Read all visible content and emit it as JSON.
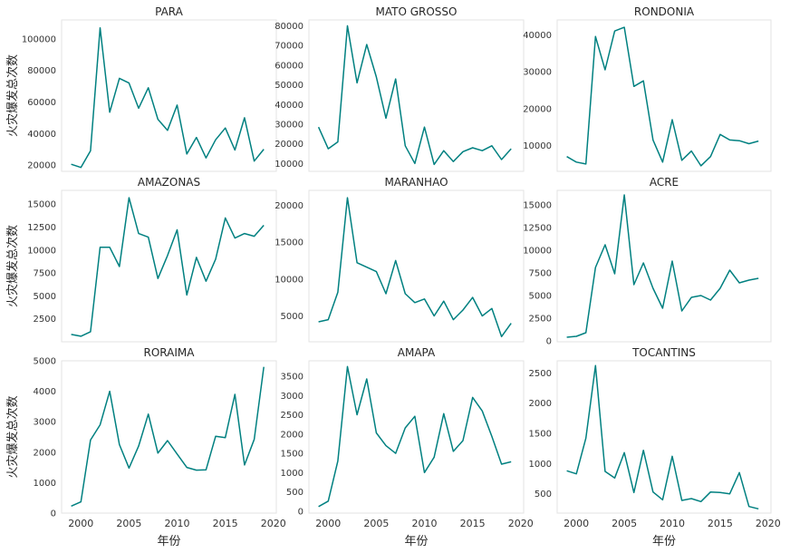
{
  "chart_data": {
    "type": "line",
    "layout": "3x3 small multiples",
    "shared_x": true,
    "x_ticks": [
      2000,
      2005,
      2010,
      2015,
      2020
    ],
    "x_label": "年份",
    "y_label": "火灾爆发总次数",
    "line_color": "#008080",
    "grid": false,
    "legend": "none",
    "panels": [
      {
        "title": "PARA",
        "ylim": [
          16000,
          112000
        ],
        "yticks": [
          20000,
          40000,
          60000,
          80000,
          100000
        ],
        "x": [
          1999,
          2000,
          2001,
          2002,
          2003,
          2004,
          2005,
          2006,
          2007,
          2008,
          2009,
          2010,
          2011,
          2012,
          2013,
          2014,
          2015,
          2016,
          2017,
          2018,
          2019
        ],
        "y": [
          20500,
          18500,
          29000,
          107000,
          53500,
          75000,
          72000,
          56000,
          69000,
          49000,
          42000,
          58000,
          27000,
          37500,
          24500,
          36000,
          43500,
          29500,
          50000,
          22500,
          30000
        ]
      },
      {
        "title": "MATO GROSSO",
        "ylim": [
          6000,
          83000
        ],
        "yticks": [
          10000,
          20000,
          30000,
          40000,
          50000,
          60000,
          70000,
          80000
        ],
        "x": [
          1999,
          2000,
          2001,
          2002,
          2003,
          2004,
          2005,
          2006,
          2007,
          2008,
          2009,
          2010,
          2011,
          2012,
          2013,
          2014,
          2015,
          2016,
          2017,
          2018,
          2019
        ],
        "y": [
          28500,
          17500,
          21000,
          80000,
          51000,
          70500,
          54000,
          33000,
          53000,
          19000,
          10000,
          28500,
          9500,
          16500,
          11000,
          16000,
          18000,
          16500,
          19000,
          12000,
          17500
        ]
      },
      {
        "title": "RONDONIA",
        "ylim": [
          3000,
          44000
        ],
        "yticks": [
          10000,
          20000,
          30000,
          40000
        ],
        "x": [
          1999,
          2000,
          2001,
          2002,
          2003,
          2004,
          2005,
          2006,
          2007,
          2008,
          2009,
          2010,
          2011,
          2012,
          2013,
          2014,
          2015,
          2016,
          2017,
          2018,
          2019
        ],
        "y": [
          7000,
          5500,
          5000,
          39500,
          30500,
          41000,
          42000,
          26000,
          27500,
          11500,
          5500,
          17000,
          6000,
          8500,
          4500,
          7000,
          13000,
          11500,
          11300,
          10500,
          11200
        ]
      },
      {
        "title": "AMAZONAS",
        "ylim": [
          0,
          16500
        ],
        "yticks": [
          2500,
          5000,
          7500,
          10000,
          12500,
          15000
        ],
        "x": [
          1999,
          2000,
          2001,
          2002,
          2003,
          2004,
          2005,
          2006,
          2007,
          2008,
          2009,
          2010,
          2011,
          2012,
          2013,
          2014,
          2015,
          2016,
          2017,
          2018,
          2019
        ],
        "y": [
          800,
          600,
          1100,
          10300,
          10300,
          8200,
          15700,
          11800,
          11400,
          6900,
          9400,
          12200,
          5100,
          9200,
          6600,
          9000,
          13500,
          11300,
          11800,
          11500,
          12700
        ]
      },
      {
        "title": "MARANHAO",
        "ylim": [
          1500,
          22000
        ],
        "yticks": [
          5000,
          10000,
          15000,
          20000
        ],
        "x": [
          1999,
          2000,
          2001,
          2002,
          2003,
          2004,
          2005,
          2006,
          2007,
          2008,
          2009,
          2010,
          2011,
          2012,
          2013,
          2014,
          2015,
          2016,
          2017,
          2018,
          2019
        ],
        "y": [
          4200,
          4500,
          8200,
          21000,
          12200,
          11600,
          11000,
          8000,
          12500,
          8000,
          6800,
          7300,
          5000,
          7000,
          4500,
          5800,
          7500,
          5000,
          6000,
          2200,
          4000
        ]
      },
      {
        "title": "ACRE",
        "ylim": [
          -100,
          16600
        ],
        "yticks": [
          0,
          2500,
          5000,
          7500,
          10000,
          12500,
          15000
        ],
        "x": [
          1999,
          2000,
          2001,
          2002,
          2003,
          2004,
          2005,
          2006,
          2007,
          2008,
          2009,
          2010,
          2011,
          2012,
          2013,
          2014,
          2015,
          2016,
          2017,
          2018,
          2019
        ],
        "y": [
          400,
          500,
          900,
          8100,
          10600,
          7400,
          16100,
          6200,
          8600,
          5800,
          3600,
          8800,
          3300,
          4800,
          5000,
          4500,
          5800,
          7800,
          6400,
          6700,
          6900
        ]
      },
      {
        "title": "RORAIMA",
        "ylim": [
          0,
          5000
        ],
        "yticks": [
          0,
          1000,
          2000,
          3000,
          4000,
          5000
        ],
        "x": [
          1999,
          2000,
          2001,
          2002,
          2003,
          2004,
          2005,
          2006,
          2007,
          2008,
          2009,
          2010,
          2011,
          2012,
          2013,
          2014,
          2015,
          2016,
          2017,
          2018,
          2019
        ],
        "y": [
          230,
          370,
          2400,
          2900,
          4000,
          2250,
          1480,
          2200,
          3250,
          1970,
          2380,
          1940,
          1500,
          1410,
          1420,
          2520,
          2480,
          3900,
          1580,
          2420,
          4800
        ]
      },
      {
        "title": "AMAPA",
        "ylim": [
          -50,
          3900
        ],
        "yticks": [
          0,
          500,
          1000,
          1500,
          2000,
          2500,
          3000,
          3500
        ],
        "x": [
          1999,
          2000,
          2001,
          2002,
          2003,
          2004,
          2005,
          2006,
          2007,
          2008,
          2009,
          2010,
          2011,
          2012,
          2013,
          2014,
          2015,
          2016,
          2017,
          2018,
          2019
        ],
        "y": [
          120,
          260,
          1300,
          3750,
          2500,
          3430,
          2030,
          1700,
          1500,
          2160,
          2460,
          1000,
          1400,
          2530,
          1550,
          1830,
          2950,
          2600,
          1940,
          1220,
          1280
        ]
      },
      {
        "title": "TOCANTINS",
        "ylim": [
          180,
          2700
        ],
        "yticks": [
          500,
          1000,
          1500,
          2000,
          2500
        ],
        "x": [
          1999,
          2000,
          2001,
          2002,
          2003,
          2004,
          2005,
          2006,
          2007,
          2008,
          2009,
          2010,
          2011,
          2012,
          2013,
          2014,
          2015,
          2016,
          2017,
          2018,
          2019
        ],
        "y": [
          880,
          830,
          1420,
          2620,
          870,
          760,
          1180,
          520,
          1220,
          530,
          400,
          1120,
          390,
          420,
          370,
          530,
          520,
          500,
          850,
          290,
          250
        ]
      }
    ]
  }
}
